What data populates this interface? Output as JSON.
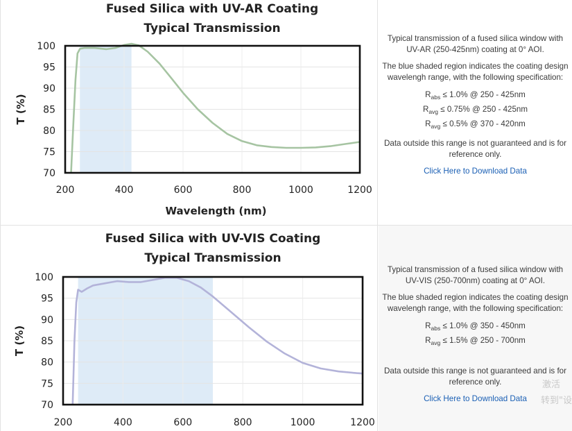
{
  "charts": [
    {
      "title_line1": "Fused Silica with UV-AR Coating",
      "title_line2": "Typical Transmission",
      "description": {
        "intro": "Typical transmission of a fused silica window with UV-AR (250-425nm) coating at 0° AOI.",
        "region_text": "The blue shaded region indicates the coating design wavelengh range, with the following specification:",
        "specs": [
          {
            "sym": "R",
            "sub": "abs",
            "text": " ≤ 1.0% @ 250 - 425nm"
          },
          {
            "sym": "R",
            "sub": "avg",
            "text": " ≤ 0.75% @ 250 - 425nm"
          },
          {
            "sym": "R",
            "sub": "avg",
            "text": " ≤ 0.5% @ 370 - 420nm"
          }
        ],
        "outside_text": "Data outside this range is not guaranteed and is for reference only.",
        "download_label": "Click Here to Download Data"
      }
    },
    {
      "title_line1": "Fused Silica with UV-VIS Coating",
      "title_line2": "Typical Transmission",
      "description": {
        "intro": "Typical transmission of a fused silica window with UV-VIS (250-700nm) coating at 0° AOI.",
        "region_text": "The blue shaded region indicates the coating design wavelengh range, with the following specification:",
        "specs": [
          {
            "sym": "R",
            "sub": "abs",
            "text": " ≤ 1.0% @ 350 - 450nm"
          },
          {
            "sym": "R",
            "sub": "avg",
            "text": " ≤ 1.5% @ 250 - 700nm"
          }
        ],
        "outside_text": "Data outside this range is not guaranteed and is for reference only.",
        "download_label": "Click Here to Download Data"
      }
    }
  ],
  "watermark": {
    "line1": "激活",
    "line2": "转到\"设"
  },
  "chart_data": [
    {
      "type": "line",
      "title": "Fused Silica with UV-AR Coating Typical Transmission",
      "xlabel": "Wavelength (nm)",
      "ylabel": "T (%)",
      "xlim": [
        200,
        1200
      ],
      "ylim": [
        70,
        100
      ],
      "xticks": [
        "200",
        "400",
        "600",
        "800",
        "1000",
        "1200"
      ],
      "yticks": [
        "70",
        "75",
        "80",
        "85",
        "90",
        "95",
        "100"
      ],
      "shaded_range": [
        250,
        425
      ],
      "shade_color": "#deebf7",
      "grid": true,
      "series": [
        {
          "color": "#a6c4a2",
          "x": [
            220,
            228,
            235,
            242,
            250,
            265,
            300,
            340,
            370,
            400,
            425,
            450,
            480,
            520,
            560,
            600,
            650,
            700,
            750,
            800,
            850,
            900,
            950,
            1000,
            1050,
            1100,
            1150,
            1200
          ],
          "y": [
            70,
            82,
            92,
            98.2,
            99.3,
            99.5,
            99.5,
            99.2,
            99.5,
            100.2,
            100.5,
            100.1,
            98.6,
            95.8,
            92.4,
            88.9,
            85.0,
            81.8,
            79.2,
            77.5,
            76.5,
            76.1,
            75.9,
            75.9,
            76.0,
            76.3,
            76.8,
            77.3
          ]
        }
      ]
    },
    {
      "type": "line",
      "title": "Fused Silica with UV-VIS Coating Typical Transmission",
      "ylabel": "T (%)",
      "xlim": [
        200,
        1200
      ],
      "ylim": [
        70,
        100
      ],
      "xticks": [
        "200",
        "400",
        "600",
        "800",
        "1000",
        "1200"
      ],
      "yticks": [
        "70",
        "75",
        "80",
        "85",
        "90",
        "95",
        "100"
      ],
      "shaded_range": [
        250,
        700
      ],
      "shade_color": "#deebf7",
      "grid": true,
      "series": [
        {
          "color": "#b3b3d9",
          "x": [
            232,
            238,
            244,
            250,
            262,
            280,
            300,
            340,
            380,
            420,
            460,
            500,
            540,
            580,
            620,
            660,
            700,
            760,
            820,
            880,
            940,
            1000,
            1060,
            1120,
            1180,
            1200
          ],
          "y": [
            70,
            85,
            94,
            97.0,
            96.5,
            97.3,
            98.0,
            98.5,
            99.0,
            98.8,
            98.8,
            99.3,
            99.8,
            99.8,
            99.0,
            97.5,
            95.4,
            91.8,
            88.2,
            84.8,
            82.0,
            79.8,
            78.5,
            77.8,
            77.4,
            77.3
          ]
        }
      ]
    }
  ]
}
